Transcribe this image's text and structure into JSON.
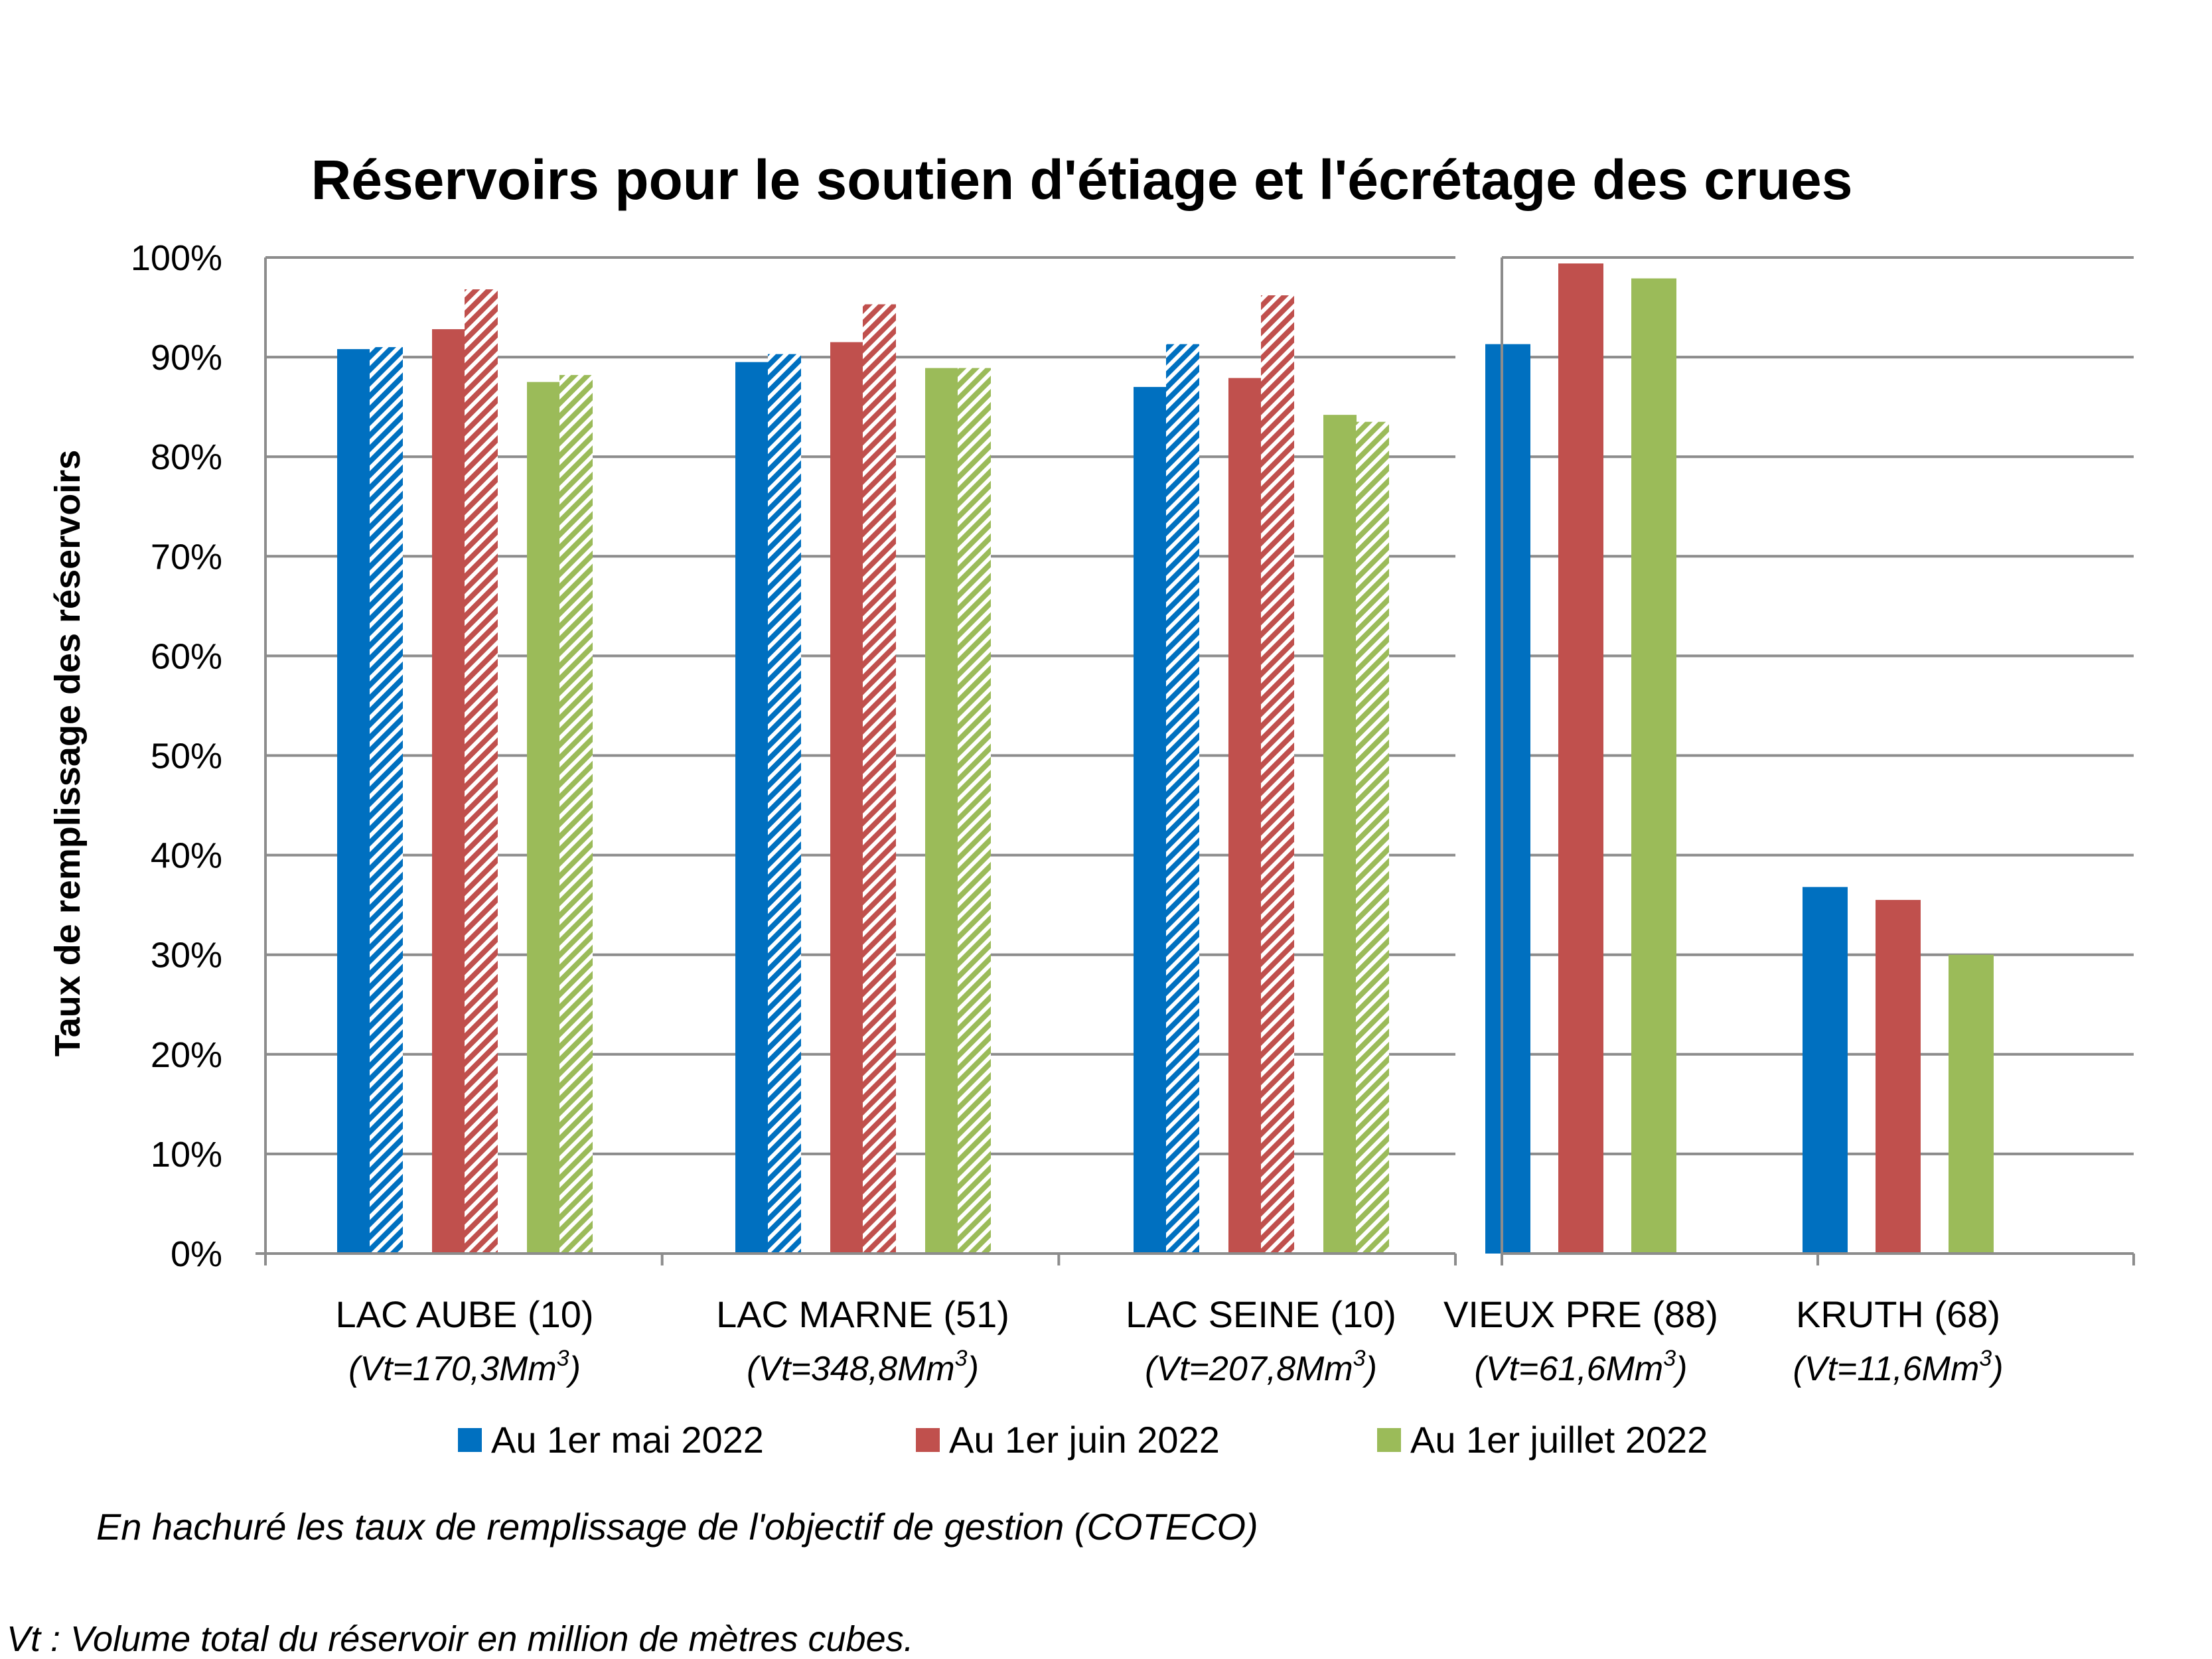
{
  "chart_data": {
    "type": "bar",
    "title": "Réservoirs pour le soutien d'étiage et l'écrétage des crues",
    "ylabel": "Taux de remplissage des réservoirs",
    "ylim": [
      0,
      100
    ],
    "yticks": [
      "0%",
      "10%",
      "20%",
      "30%",
      "40%",
      "50%",
      "60%",
      "70%",
      "80%",
      "90%",
      "100%"
    ],
    "categories": [
      {
        "name": "LAC AUBE (10)",
        "vt": "(Vt=170,3Mm",
        "panel": 1
      },
      {
        "name": "LAC MARNE (51)",
        "vt": "(Vt=348,8Mm",
        "panel": 1
      },
      {
        "name": "LAC SEINE (10)",
        "vt": "(Vt=207,8Mm",
        "panel": 1
      },
      {
        "name": "VIEUX PRE (88)",
        "vt": "(Vt=61,6Mm",
        "panel": 2
      },
      {
        "name": "KRUTH (68)",
        "vt": "(Vt=11,6Mm",
        "panel": 2
      }
    ],
    "vt_sup": "3",
    "vt_close": ")",
    "series": [
      {
        "name": "Au 1er mai 2022",
        "color": "#0070C0",
        "values": [
          90.8,
          89.5,
          87.0,
          91.3,
          36.8
        ],
        "objective": [
          91.0,
          90.3,
          91.3,
          null,
          null
        ]
      },
      {
        "name": "Au 1er juin 2022",
        "color": "#C0504D",
        "values": [
          92.8,
          91.5,
          87.9,
          99.4,
          35.5
        ],
        "objective": [
          96.8,
          95.3,
          96.2,
          null,
          null
        ]
      },
      {
        "name": "Au 1er juillet 2022",
        "color": "#9BBB59",
        "values": [
          87.5,
          88.9,
          84.2,
          97.9,
          30.0
        ],
        "objective": [
          88.2,
          88.9,
          83.5,
          null,
          null
        ]
      }
    ],
    "grid": true,
    "legend_position": "bottom"
  },
  "notes": {
    "hatch_note": "En hachuré les taux de remplissage de l'objectif de gestion (COTECO)",
    "vt_note": "Vt : Volume total du réservoir en million de mètres cubes."
  }
}
